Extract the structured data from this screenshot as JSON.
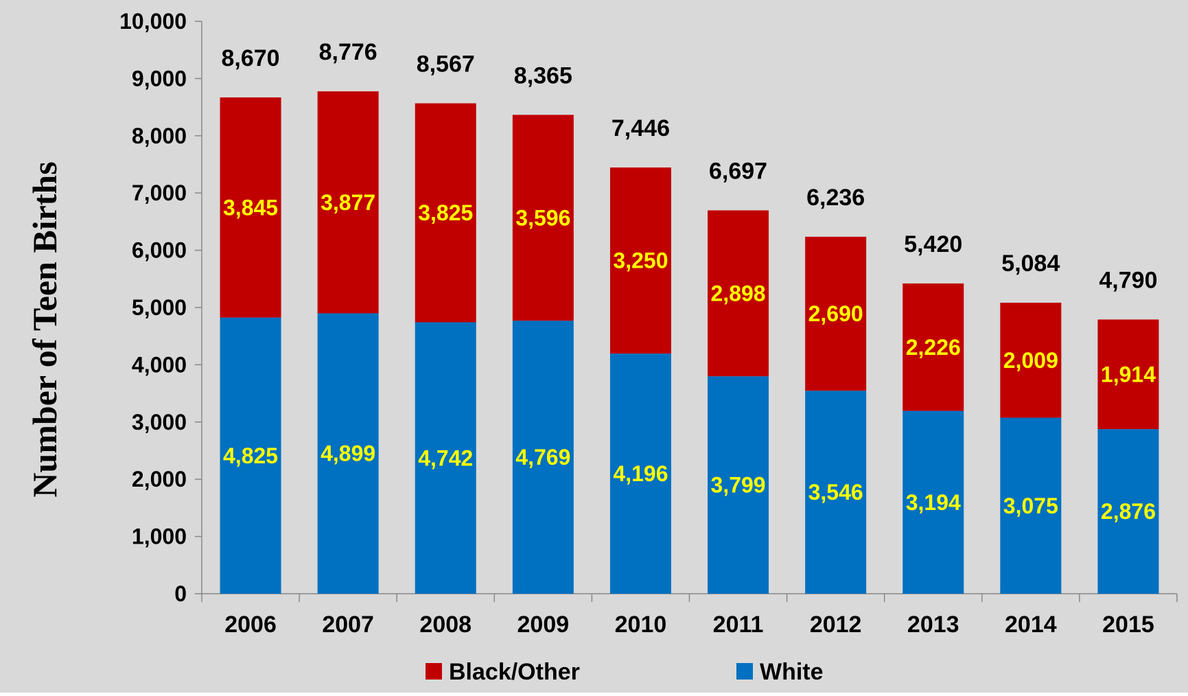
{
  "chart_data": {
    "type": "bar",
    "stacked": true,
    "title": "",
    "xlabel": "",
    "ylabel": "Number of Teen Births",
    "ylim": [
      0,
      10000
    ],
    "yticks": [
      "0",
      "1,000",
      "2,000",
      "3,000",
      "4,000",
      "5,000",
      "6,000",
      "7,000",
      "8,000",
      "9,000",
      "10,000"
    ],
    "categories": [
      "2006",
      "2007",
      "2008",
      "2009",
      "2010",
      "2011",
      "2012",
      "2013",
      "2014",
      "2015"
    ],
    "series": [
      {
        "name": "White",
        "color": "#0070C0",
        "values": [
          4825,
          4899,
          4742,
          4769,
          4196,
          3799,
          3546,
          3194,
          3075,
          2876
        ],
        "labels": [
          "4,825",
          "4,899",
          "4,742",
          "4,769",
          "4,196",
          "3,799",
          "3,546",
          "3,194",
          "3,075",
          "2,876"
        ]
      },
      {
        "name": "Black/Other",
        "color": "#C00000",
        "values": [
          3845,
          3877,
          3825,
          3596,
          3250,
          2898,
          2690,
          2226,
          2009,
          1914
        ],
        "labels": [
          "3,845",
          "3,877",
          "3,825",
          "3,596",
          "3,250",
          "2,898",
          "2,690",
          "2,226",
          "2,009",
          "1,914"
        ]
      }
    ],
    "totals": [
      8670,
      8776,
      8567,
      8365,
      7446,
      6697,
      6236,
      5420,
      5084,
      4790
    ],
    "total_labels": [
      "8,670",
      "8,776",
      "8,567",
      "8,365",
      "7,446",
      "6,697",
      "6,236",
      "5,420",
      "5,084",
      "4,790"
    ],
    "legend": {
      "position": "bottom",
      "items": [
        {
          "label": "Black/Other",
          "color": "#C00000"
        },
        {
          "label": "White",
          "color": "#0070C0"
        }
      ]
    },
    "grid": false,
    "background_color": "#D9D9D9",
    "segment_label_color": "#FFFF00",
    "text_color": "#000000"
  }
}
